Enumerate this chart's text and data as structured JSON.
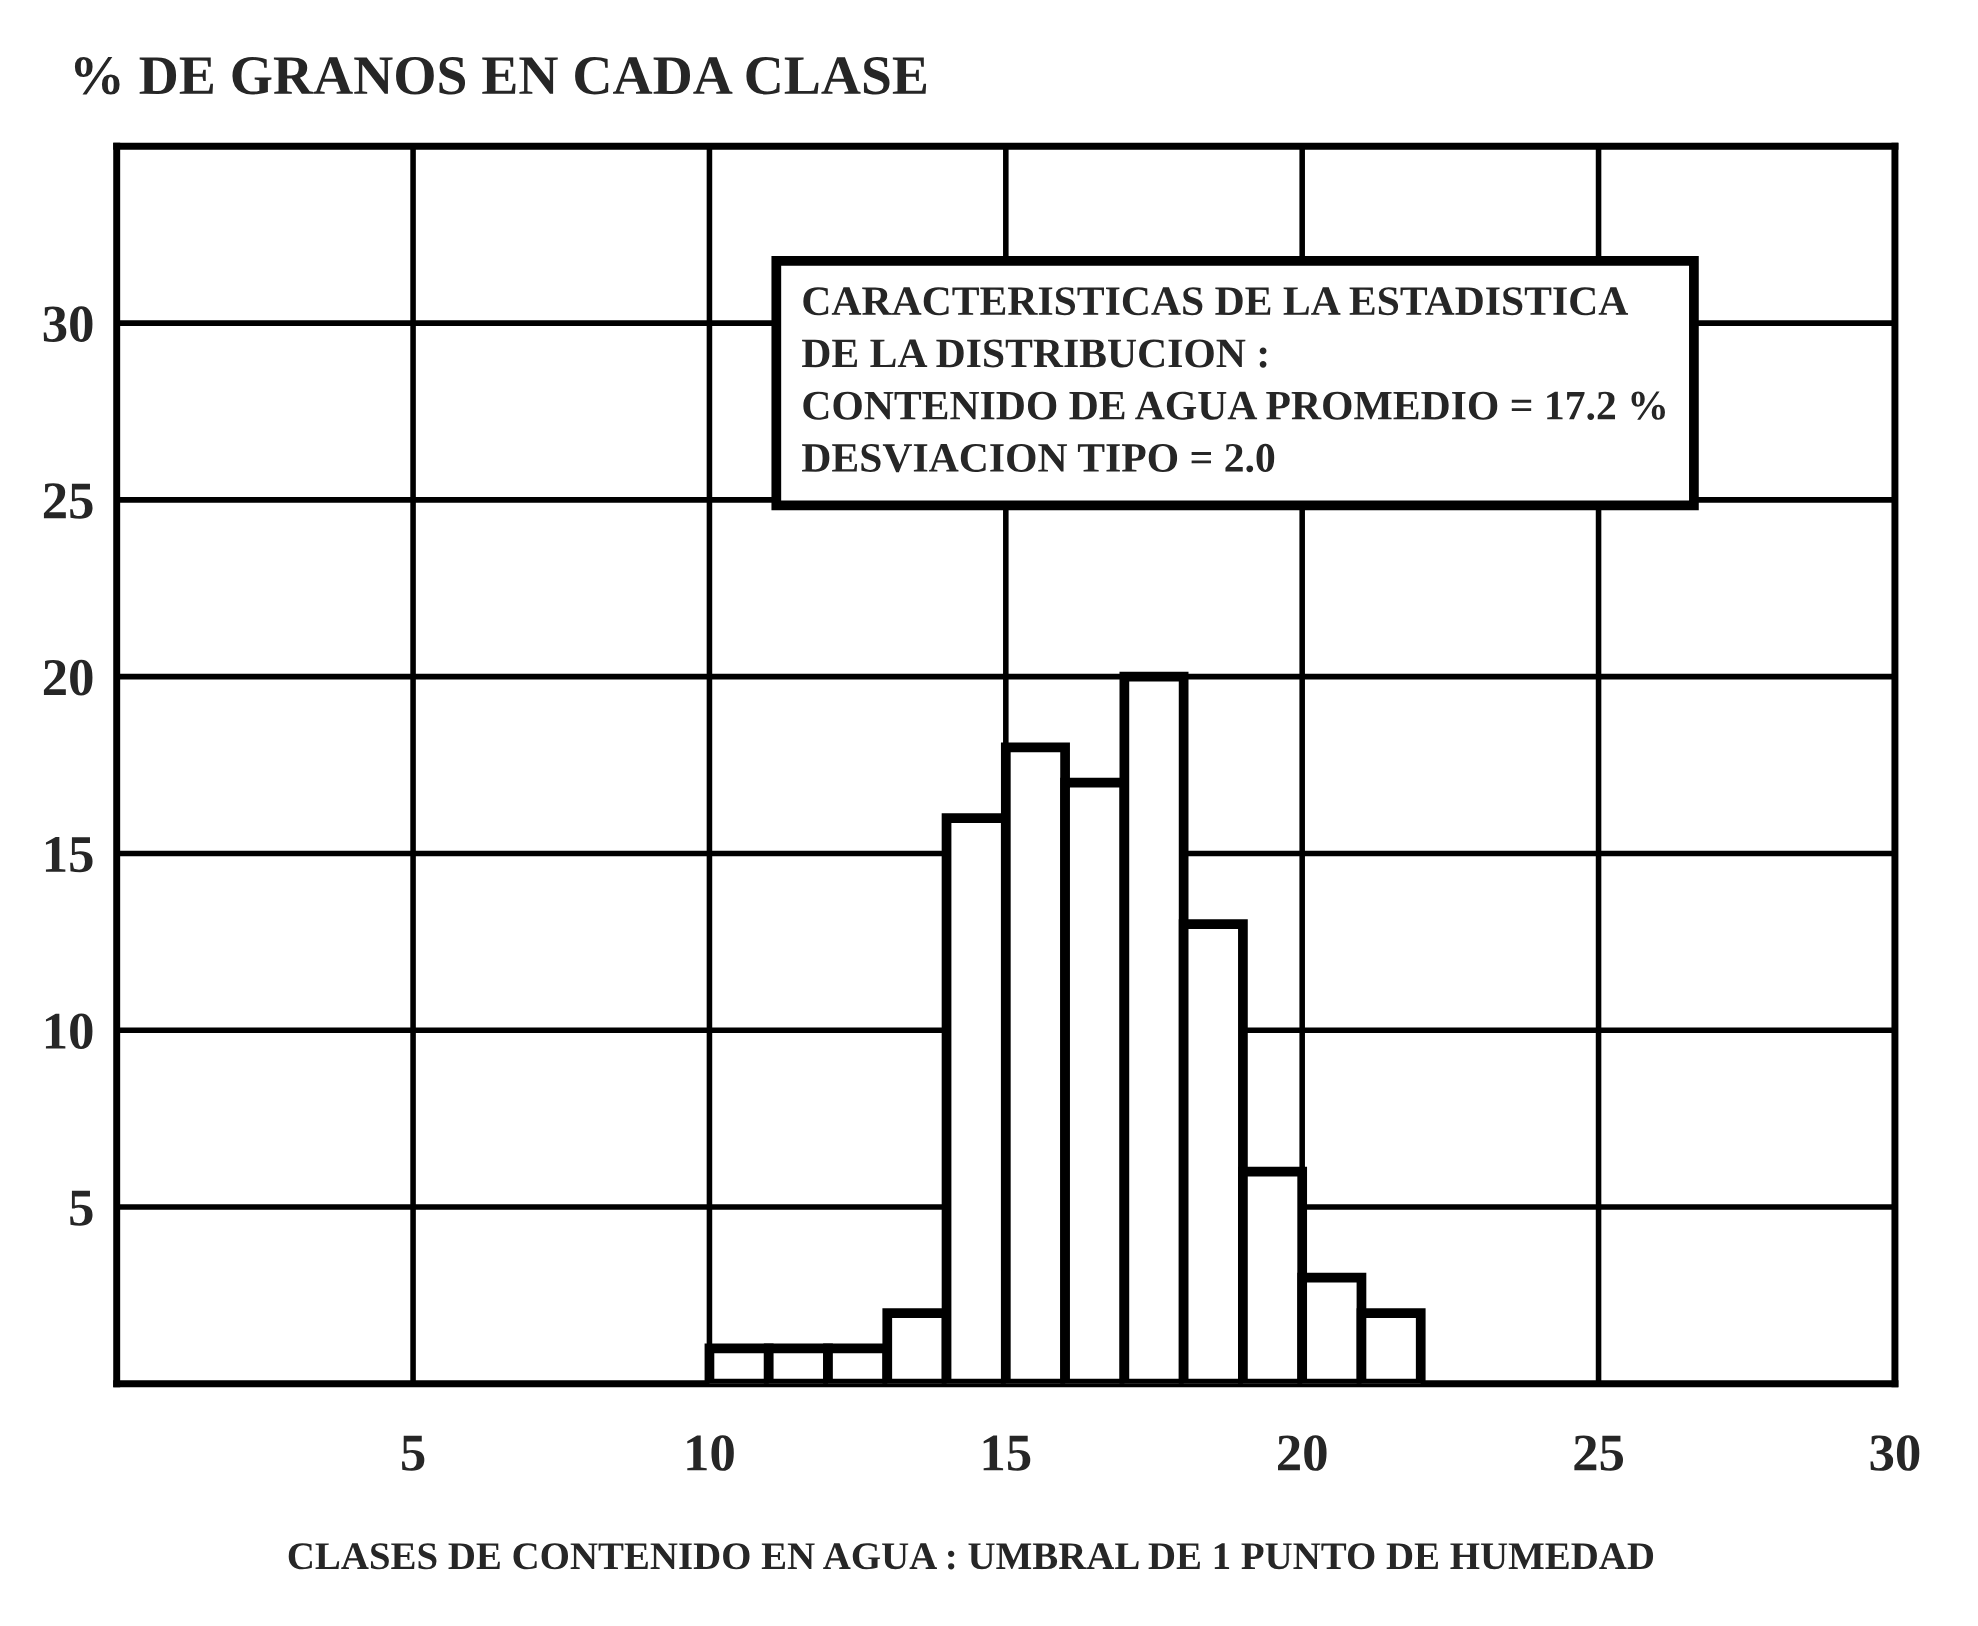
{
  "chart_data": {
    "type": "histogram",
    "ylabel": "% DE GRANOS EN CADA CLASE",
    "xlabel": "CLASES DE CONTENIDO EN AGUA : UMBRAL DE 1 PUNTO DE HUMEDAD",
    "bins": [
      10,
      11,
      12,
      13,
      14,
      15,
      16,
      17,
      18,
      19,
      20,
      21,
      22
    ],
    "values": [
      1,
      1,
      1,
      2,
      16,
      18,
      17,
      20,
      13,
      6,
      3,
      2
    ],
    "color": "#ffffff",
    "xlim": [
      0,
      30
    ],
    "xticks": [
      5,
      10,
      15,
      20,
      25,
      30
    ],
    "ylim": [
      0,
      35
    ],
    "yticks": [
      5,
      10,
      15,
      20,
      25,
      30
    ],
    "grid": true,
    "annotations": [
      "CARACTERISTICAS DE LA ESTADISTICA\nDE LA DISTRIBUCION :\nCONTENIDO DE AGUA PROMEDIO = 17.2 %\nDESVIACION TIPO = 2.0"
    ]
  }
}
